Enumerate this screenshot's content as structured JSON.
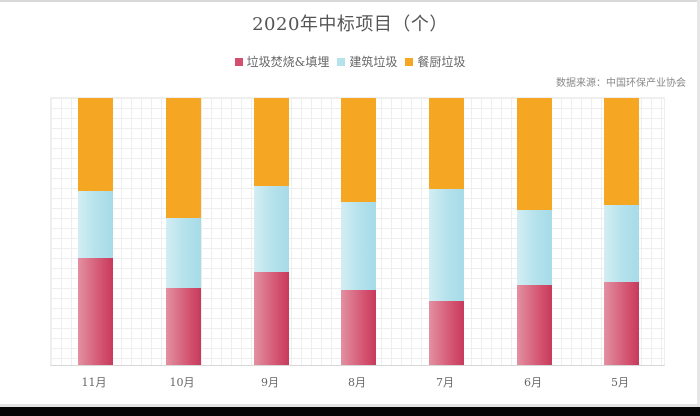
{
  "title": "2020年中标项目（个）",
  "source": "数据来源：中国环保产业协会",
  "legend": [
    {
      "label": "垃圾焚烧&填埋",
      "color": "#d2506e"
    },
    {
      "label": "建筑垃圾",
      "color": "#b6e2ec"
    },
    {
      "label": "餐厨垃圾",
      "color": "#f5a623"
    }
  ],
  "chart_data": {
    "type": "bar",
    "stacked": "percent",
    "title": "2020年中标项目（个）",
    "subtitle": "数据来源：中国环保产业协会",
    "xlabel": "",
    "ylabel": "",
    "ylim": [
      0,
      100
    ],
    "grid": true,
    "legend_position": "top",
    "categories": [
      "11月",
      "10月",
      "9月",
      "8月",
      "7月",
      "6月",
      "5月"
    ],
    "series": [
      {
        "name": "垃圾焚烧&填埋",
        "color": "#d2506e",
        "values": [
          40,
          29,
          35,
          28,
          24,
          30,
          31
        ]
      },
      {
        "name": "建筑垃圾",
        "color": "#b6e2ec",
        "values": [
          25,
          26,
          32,
          33,
          42,
          28,
          29
        ]
      },
      {
        "name": "餐厨垃圾",
        "color": "#f5a623",
        "values": [
          35,
          45,
          33,
          39,
          34,
          42,
          40
        ]
      }
    ]
  }
}
